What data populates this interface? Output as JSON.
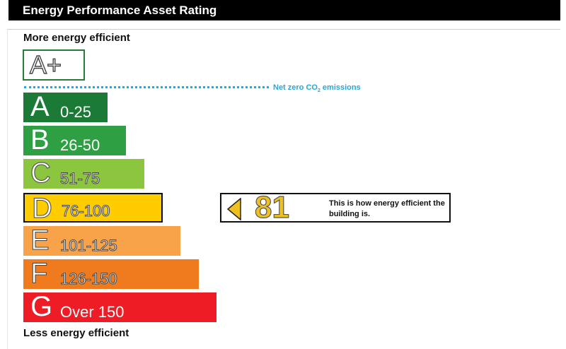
{
  "header": {
    "title": "Energy Performance Asset Rating"
  },
  "chart_data": {
    "type": "bar",
    "title": "Energy Performance Asset Rating",
    "top_label": "More energy efficient",
    "bottom_label": "Less energy efficient",
    "aplus": {
      "letter": "A+",
      "color": "#2a7a3a"
    },
    "net_zero_label": {
      "text": "Net zero CO",
      "subscript": "2",
      "suffix": " emissions"
    },
    "bands": [
      {
        "letter": "A",
        "range": "0-25",
        "color": "#1a7a36",
        "outlined": false
      },
      {
        "letter": "B",
        "range": "26-50",
        "color": "#2ea043",
        "outlined": false
      },
      {
        "letter": "C",
        "range": "51-75",
        "color": "#8cc63f",
        "outlined": true
      },
      {
        "letter": "D",
        "range": "76-100",
        "color": "#ffcc00",
        "outlined": true
      },
      {
        "letter": "E",
        "range": "101-125",
        "color": "#f8a24a",
        "outlined": true
      },
      {
        "letter": "F",
        "range": "126-150",
        "color": "#f07a1e",
        "outlined": true
      },
      {
        "letter": "G",
        "range": "Over 150",
        "color": "#ee1c25",
        "outlined": false
      }
    ],
    "current": {
      "score": "81",
      "band": "D",
      "text": "This is how energy efficient the building is."
    }
  }
}
